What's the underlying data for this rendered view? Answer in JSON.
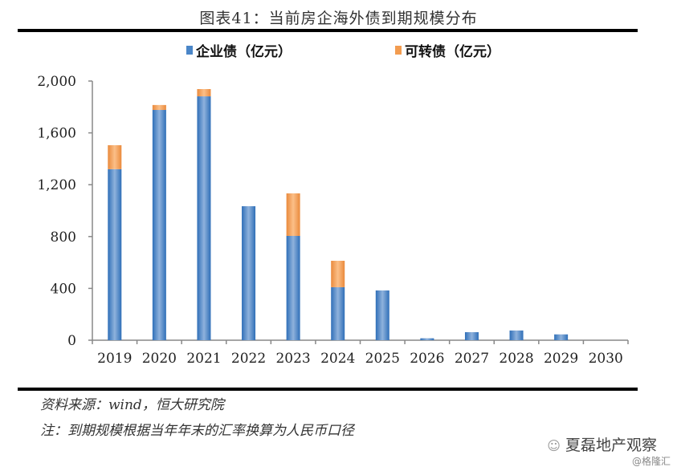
{
  "chart_data": {
    "type": "bar",
    "stacked": true,
    "title": "图表41：当前房企海外债到期规模分布",
    "xlabel": "",
    "ylabel": "",
    "ylim": [
      0,
      2000
    ],
    "yticks": [
      0,
      400,
      800,
      1200,
      1600,
      2000
    ],
    "ytick_labels": [
      "0",
      "400",
      "800",
      "1,200",
      "1,600",
      "2,000"
    ],
    "categories": [
      "2019",
      "2020",
      "2021",
      "2022",
      "2023",
      "2024",
      "2025",
      "2026",
      "2027",
      "2028",
      "2029",
      "2030"
    ],
    "series": [
      {
        "name": "企业债（亿元）",
        "color": "#4a86c8",
        "values": [
          1320,
          1777,
          1882,
          1034,
          805,
          409,
          384,
          15,
          62,
          75,
          45,
          0
        ]
      },
      {
        "name": "可转债（亿元）",
        "color": "#f39c50",
        "values": [
          185,
          38,
          56,
          0,
          328,
          204,
          0,
          0,
          0,
          0,
          0,
          0
        ]
      }
    ],
    "legend_position": "top",
    "grid": false
  },
  "footer": {
    "source": "资料来源：wind，恒大研究院",
    "note": "注：到期规模根据当年年末的汇率换算为人民币口径"
  },
  "watermark": {
    "brand": "夏磊地产观察",
    "handle": "@格隆汇"
  }
}
